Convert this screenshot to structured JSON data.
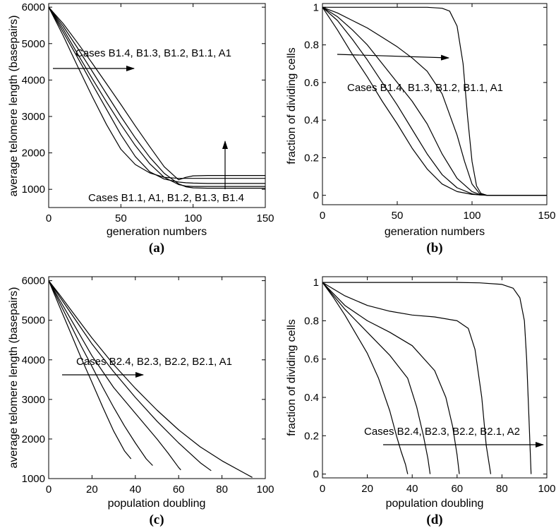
{
  "chart_data": [
    {
      "id": "a",
      "type": "line",
      "panel_label": "(a)",
      "xlabel": "generation numbers",
      "ylabel": "average telomere length (basepairs)",
      "xlim": [
        0,
        150
      ],
      "ylim": [
        500,
        6100
      ],
      "xticks": [
        "0",
        "50",
        "100",
        "150"
      ],
      "yticks": [
        "1000",
        "2000",
        "3000",
        "4000",
        "5000",
        "6000"
      ],
      "grid": false,
      "annotations": [
        {
          "text": "Cases B1.4, B1.3, B1.2, B1.1, A1"
        },
        {
          "text": "Cases B1.1, A1, B1.2, B1.3, B1.4"
        }
      ],
      "series": [
        {
          "name": "A1",
          "x": [
            0,
            10,
            20,
            30,
            40,
            50,
            60,
            70,
            80,
            90,
            95,
            100,
            110,
            120,
            130,
            140,
            150
          ],
          "y": [
            6000,
            5320,
            4620,
            3900,
            3200,
            2500,
            1900,
            1480,
            1280,
            1200,
            1180,
            1170,
            1160,
            1160,
            1160,
            1160,
            1160
          ]
        },
        {
          "name": "B1.1",
          "x": [
            0,
            10,
            20,
            30,
            40,
            50,
            60,
            70,
            80,
            90,
            95,
            100,
            110,
            120,
            130,
            140,
            150
          ],
          "y": [
            6000,
            5220,
            4380,
            3560,
            2780,
            2100,
            1680,
            1450,
            1330,
            1300,
            1300,
            1300,
            1300,
            1300,
            1300,
            1300,
            1300
          ]
        },
        {
          "name": "B1.2",
          "x": [
            0,
            10,
            20,
            30,
            40,
            50,
            60,
            70,
            80,
            90,
            95,
            100,
            110,
            120,
            130,
            140,
            150
          ],
          "y": [
            6000,
            5400,
            4720,
            4050,
            3400,
            2780,
            2200,
            1700,
            1330,
            1130,
            1090,
            1080,
            1080,
            1080,
            1080,
            1080,
            1080
          ]
        },
        {
          "name": "B1.3",
          "x": [
            0,
            10,
            20,
            30,
            40,
            50,
            60,
            70,
            80,
            90,
            95,
            100,
            110,
            120,
            130,
            140,
            150
          ],
          "y": [
            6000,
            5480,
            4880,
            4250,
            3620,
            3000,
            2410,
            1880,
            1440,
            1150,
            1070,
            1040,
            1030,
            1030,
            1030,
            1030,
            1030
          ]
        },
        {
          "name": "B1.4",
          "x": [
            0,
            10,
            20,
            30,
            40,
            50,
            60,
            70,
            80,
            90,
            95,
            100,
            110,
            120,
            130,
            140,
            150
          ],
          "y": [
            6000,
            5550,
            5020,
            4470,
            3900,
            3330,
            2740,
            2170,
            1620,
            1260,
            1330,
            1370,
            1380,
            1380,
            1380,
            1380,
            1380
          ]
        }
      ]
    },
    {
      "id": "b",
      "type": "line",
      "panel_label": "(b)",
      "xlabel": "generation numbers",
      "ylabel": "fraction of  dividing cells",
      "xlim": [
        0,
        150
      ],
      "ylim": [
        -0.05,
        1.02
      ],
      "xticks": [
        "0",
        "50",
        "100",
        "150"
      ],
      "yticks": [
        "0",
        "0.2",
        "0.4",
        "0.6",
        "0.8",
        "1"
      ],
      "grid": false,
      "annotations": [
        {
          "text": "Cases B1.4, B1.3, B1.2, B1.1, A1"
        }
      ],
      "series": [
        {
          "name": "A1",
          "x": [
            0,
            20,
            40,
            60,
            70,
            80,
            85,
            90,
            94,
            97,
            100,
            103,
            106,
            110,
            120,
            150
          ],
          "y": [
            1,
            1,
            1,
            1,
            1,
            0.995,
            0.98,
            0.9,
            0.7,
            0.42,
            0.18,
            0.05,
            0.01,
            0,
            0,
            0
          ]
        },
        {
          "name": "B1.1",
          "x": [
            0,
            10,
            20,
            30,
            40,
            50,
            60,
            70,
            80,
            90,
            95,
            100,
            105,
            110,
            120,
            150
          ],
          "y": [
            1,
            0.97,
            0.93,
            0.89,
            0.84,
            0.79,
            0.73,
            0.66,
            0.54,
            0.32,
            0.18,
            0.06,
            0.01,
            0,
            0,
            0
          ]
        },
        {
          "name": "B1.2",
          "x": [
            0,
            10,
            20,
            30,
            40,
            50,
            60,
            70,
            80,
            90,
            100,
            105,
            110,
            120,
            150
          ],
          "y": [
            1,
            0.95,
            0.88,
            0.8,
            0.7,
            0.6,
            0.5,
            0.38,
            0.22,
            0.09,
            0.02,
            0.005,
            0,
            0,
            0
          ]
        },
        {
          "name": "B1.3",
          "x": [
            0,
            10,
            20,
            30,
            40,
            50,
            60,
            70,
            80,
            90,
            100,
            105,
            110,
            120,
            150
          ],
          "y": [
            1,
            0.93,
            0.83,
            0.72,
            0.6,
            0.48,
            0.35,
            0.22,
            0.11,
            0.04,
            0.008,
            0.002,
            0,
            0,
            0
          ]
        },
        {
          "name": "B1.4",
          "x": [
            0,
            10,
            20,
            30,
            40,
            50,
            60,
            70,
            80,
            90,
            100,
            110,
            120,
            150
          ],
          "y": [
            1,
            0.88,
            0.75,
            0.63,
            0.5,
            0.38,
            0.25,
            0.14,
            0.06,
            0.02,
            0.005,
            0,
            0,
            0
          ]
        }
      ]
    },
    {
      "id": "c",
      "type": "line",
      "panel_label": "(c)",
      "xlabel": "population doubling",
      "ylabel": "average telomere length (basepairs)",
      "xlim": [
        0,
        100
      ],
      "ylim": [
        1000,
        6100
      ],
      "xticks": [
        "0",
        "20",
        "40",
        "60",
        "80",
        "100"
      ],
      "yticks": [
        "1000",
        "2000",
        "3000",
        "4000",
        "5000",
        "6000"
      ],
      "grid": false,
      "annotations": [
        {
          "text": "Cases B2.4, B2.3, B2.2, B2.1, A1"
        }
      ],
      "series": [
        {
          "name": "B2.4",
          "x": [
            0,
            5,
            10,
            15,
            20,
            25,
            30,
            35,
            38
          ],
          "y": [
            6000,
            5350,
            4700,
            4050,
            3430,
            2800,
            2200,
            1700,
            1500
          ]
        },
        {
          "name": "B2.3",
          "x": [
            0,
            5,
            10,
            15,
            20,
            25,
            30,
            35,
            40,
            45,
            48
          ],
          "y": [
            6000,
            5450,
            4900,
            4350,
            3830,
            3300,
            2800,
            2330,
            1900,
            1500,
            1330
          ]
        },
        {
          "name": "B2.2",
          "x": [
            0,
            5,
            10,
            20,
            30,
            40,
            50,
            55,
            60,
            61
          ],
          "y": [
            6000,
            5520,
            5050,
            4100,
            3300,
            2650,
            2000,
            1650,
            1280,
            1220
          ]
        },
        {
          "name": "B2.1",
          "x": [
            0,
            5,
            10,
            20,
            30,
            40,
            50,
            60,
            70,
            75
          ],
          "y": [
            6000,
            5600,
            5200,
            4400,
            3700,
            3050,
            2450,
            1900,
            1400,
            1200
          ]
        },
        {
          "name": "A1",
          "x": [
            0,
            5,
            10,
            20,
            30,
            40,
            50,
            60,
            70,
            80,
            90,
            94
          ],
          "y": [
            6000,
            5650,
            5280,
            4550,
            3880,
            3280,
            2730,
            2230,
            1800,
            1450,
            1150,
            1030
          ]
        }
      ]
    },
    {
      "id": "d",
      "type": "line",
      "panel_label": "(d)",
      "xlabel": "population doubling",
      "ylabel": "fraction of  dividing cells",
      "xlim": [
        0,
        100
      ],
      "ylim": [
        -0.02,
        1.03
      ],
      "xticks": [
        "0",
        "20",
        "40",
        "60",
        "80",
        "100"
      ],
      "yticks": [
        "0",
        "0.2",
        "0.4",
        "0.6",
        "0.8",
        "1"
      ],
      "grid": false,
      "annotations": [
        {
          "text": "Cases B2.4, B2.3, B2.2, B2.1, A2"
        }
      ],
      "series": [
        {
          "name": "B2.4",
          "x": [
            0,
            5,
            10,
            15,
            20,
            25,
            30,
            33,
            35,
            37,
            38
          ],
          "y": [
            1,
            0.92,
            0.83,
            0.73,
            0.63,
            0.5,
            0.33,
            0.2,
            0.12,
            0.05,
            0
          ]
        },
        {
          "name": "B2.3",
          "x": [
            0,
            5,
            10,
            20,
            30,
            38,
            42,
            45,
            47,
            48
          ],
          "y": [
            1,
            0.93,
            0.86,
            0.74,
            0.62,
            0.5,
            0.35,
            0.2,
            0.08,
            0
          ]
        },
        {
          "name": "B2.2",
          "x": [
            0,
            10,
            20,
            30,
            40,
            50,
            55,
            58,
            60,
            61
          ],
          "y": [
            1,
            0.88,
            0.8,
            0.74,
            0.67,
            0.54,
            0.4,
            0.25,
            0.1,
            0
          ]
        },
        {
          "name": "B2.1",
          "x": [
            0,
            10,
            20,
            30,
            40,
            50,
            60,
            65,
            68,
            71,
            73,
            75
          ],
          "y": [
            1,
            0.93,
            0.88,
            0.85,
            0.83,
            0.82,
            0.8,
            0.76,
            0.65,
            0.4,
            0.15,
            0
          ]
        },
        {
          "name": "A2",
          "x": [
            0,
            20,
            40,
            60,
            70,
            80,
            85,
            88,
            90,
            91,
            92,
            93
          ],
          "y": [
            1,
            1,
            1,
            1,
            0.998,
            0.99,
            0.97,
            0.92,
            0.8,
            0.6,
            0.3,
            0
          ]
        }
      ]
    }
  ]
}
